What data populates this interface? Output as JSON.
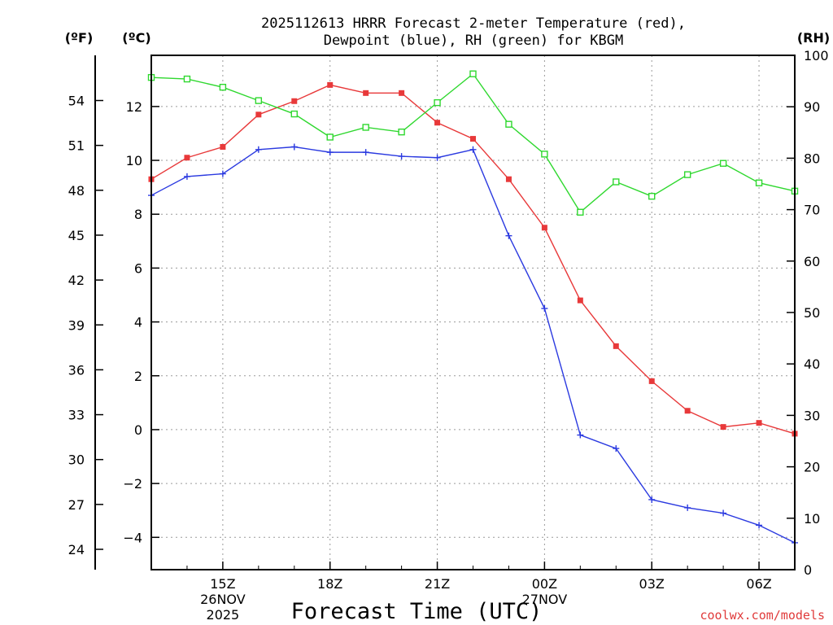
{
  "chart_data": {
    "type": "line",
    "title_line1": "2025112613 HRRR Forecast 2-meter Temperature (red),",
    "title_line2": "Dewpoint (blue), RH (green) for KBGM",
    "xlabel": "Forecast Time (UTC)",
    "credit": "coolwx.com/models",
    "x_hours": [
      13,
      14,
      15,
      16,
      17,
      18,
      19,
      20,
      21,
      22,
      23,
      24,
      25,
      26,
      27,
      28,
      29,
      30,
      31
    ],
    "x_range": [
      13,
      31
    ],
    "x_ticks": [
      {
        "hour": 15,
        "label": "15Z",
        "date": "26NOV",
        "year": "2025"
      },
      {
        "hour": 18,
        "label": "18Z"
      },
      {
        "hour": 21,
        "label": "21Z"
      },
      {
        "hour": 24,
        "label": "00Z",
        "date": "27NOV"
      },
      {
        "hour": 27,
        "label": "03Z"
      },
      {
        "hour": 30,
        "label": "06Z"
      }
    ],
    "celsius_axis": {
      "unit_label": "(ºC)",
      "range": [
        -5.2,
        13.9
      ],
      "ticks": [
        12,
        10,
        8,
        6,
        4,
        2,
        0,
        -2,
        -4
      ],
      "tick_labels": [
        "12",
        "10",
        "8",
        "6",
        "4",
        "2",
        "0",
        "−2",
        "−4"
      ]
    },
    "fahrenheit_axis": {
      "unit_label": "(ºF)",
      "ticks": [
        54,
        51,
        48,
        45,
        42,
        39,
        36,
        33,
        30,
        27,
        24
      ]
    },
    "rh_axis": {
      "unit_label": "(RH)",
      "range": [
        0,
        100
      ],
      "ticks": [
        100,
        90,
        80,
        70,
        60,
        50,
        40,
        30,
        20,
        10,
        0
      ]
    },
    "series": [
      {
        "name": "Temperature",
        "color": "#e8393a",
        "marker": "filled-square",
        "values_c": [
          9.3,
          10.1,
          10.5,
          11.7,
          12.2,
          12.8,
          12.5,
          12.5,
          11.4,
          10.8,
          9.3,
          7.5,
          4.8,
          3.1,
          1.8,
          0.7,
          0.1,
          0.25,
          -0.15
        ]
      },
      {
        "name": "Dewpoint",
        "color": "#2b3ae0",
        "marker": "plus",
        "values_c": [
          8.7,
          9.4,
          9.5,
          10.4,
          10.5,
          10.3,
          10.3,
          10.15,
          10.1,
          10.4,
          7.2,
          4.5,
          -0.2,
          -0.7,
          -2.6,
          -2.9,
          -3.1,
          -3.55,
          -4.2
        ]
      },
      {
        "name": "RH",
        "color": "#2fd82f",
        "marker": "open-square",
        "values_rh": [
          95.7,
          95.4,
          93.8,
          91.2,
          88.6,
          84.1,
          86.0,
          85.1,
          90.8,
          96.4,
          86.6,
          80.8,
          69.5,
          75.4,
          72.6,
          76.8,
          79.0,
          75.2,
          73.6
        ]
      }
    ]
  }
}
